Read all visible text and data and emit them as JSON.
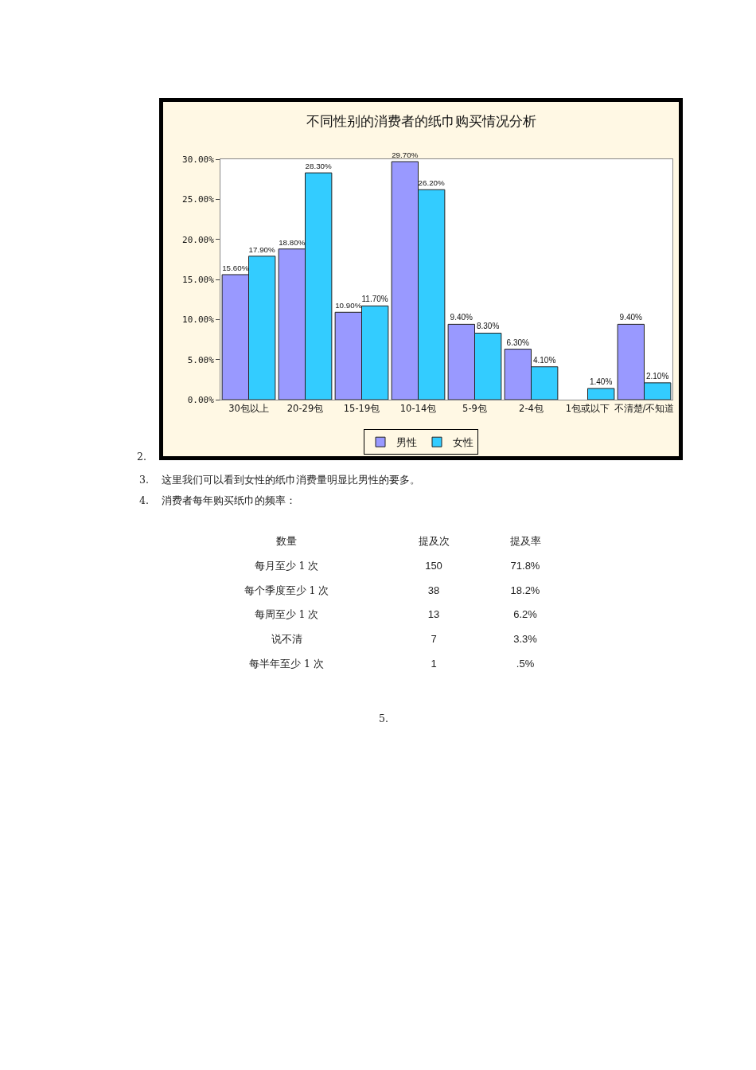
{
  "chart_data": [
    {
      "type": "bar",
      "title": "不同性别的消费者的纸巾购买情况分析",
      "categories": [
        "30包以上",
        "20-29包",
        "15-19包",
        "10-14包",
        "5-9包",
        "2-4包",
        "1包或以下",
        "不清楚/不知道"
      ],
      "series": [
        {
          "name": "男性",
          "color": "#9999ff",
          "values": [
            15.6,
            18.8,
            10.9,
            29.7,
            9.4,
            6.3,
            null,
            9.4
          ],
          "value_labels": [
            "15.60%",
            "18.80%",
            "10.90%",
            "29.70%",
            "9.40%",
            "6.30%",
            null,
            "9.40%"
          ]
        },
        {
          "name": "女性",
          "color": "#33ccff",
          "values": [
            17.9,
            28.3,
            11.7,
            26.2,
            8.3,
            4.1,
            1.4,
            2.1
          ],
          "value_labels": [
            "17.90%",
            "28.30%",
            "11.70%",
            "26.20%",
            "8.30%",
            "4.10%",
            "1.40%",
            "2.10%"
          ]
        }
      ],
      "ylim": [
        0,
        30
      ],
      "yticks": [
        {
          "value": 0,
          "label": "0.00%"
        },
        {
          "value": 5,
          "label": "5.00%"
        },
        {
          "value": 10,
          "label": "10.00%"
        },
        {
          "value": 15,
          "label": "15.00%"
        },
        {
          "value": 20,
          "label": "20.00%"
        },
        {
          "value": 25,
          "label": "25.00%"
        },
        {
          "value": 30,
          "label": "30.00%"
        }
      ],
      "legend": "bottom",
      "annotations": [
        "2."
      ]
    },
    {
      "type": "other",
      "annotations": [
        "3. 这里我们可以看到女性的纸巾消费量明显比男性的要多。",
        "4. 消费者每年购买纸巾的频率：",
        "5."
      ],
      "xlabel": "数量",
      "categories": [
        "每月至少 1 次",
        "每个季度至少 1 次",
        "每周至少 1 次",
        "说不清",
        "每半年至少 1 次"
      ],
      "series": [
        {
          "name": "提及次",
          "values": [
            150,
            38,
            13,
            7,
            1
          ],
          "value_labels": [
            "150",
            "38",
            "13",
            "7",
            "1"
          ]
        },
        {
          "name": "提及率",
          "values": [
            71.8,
            18.2,
            6.2,
            3.3,
            0.5
          ],
          "value_labels": [
            "71.8%",
            "18.2%",
            "6.2%",
            "3.3%",
            ".5%"
          ]
        }
      ]
    }
  ]
}
